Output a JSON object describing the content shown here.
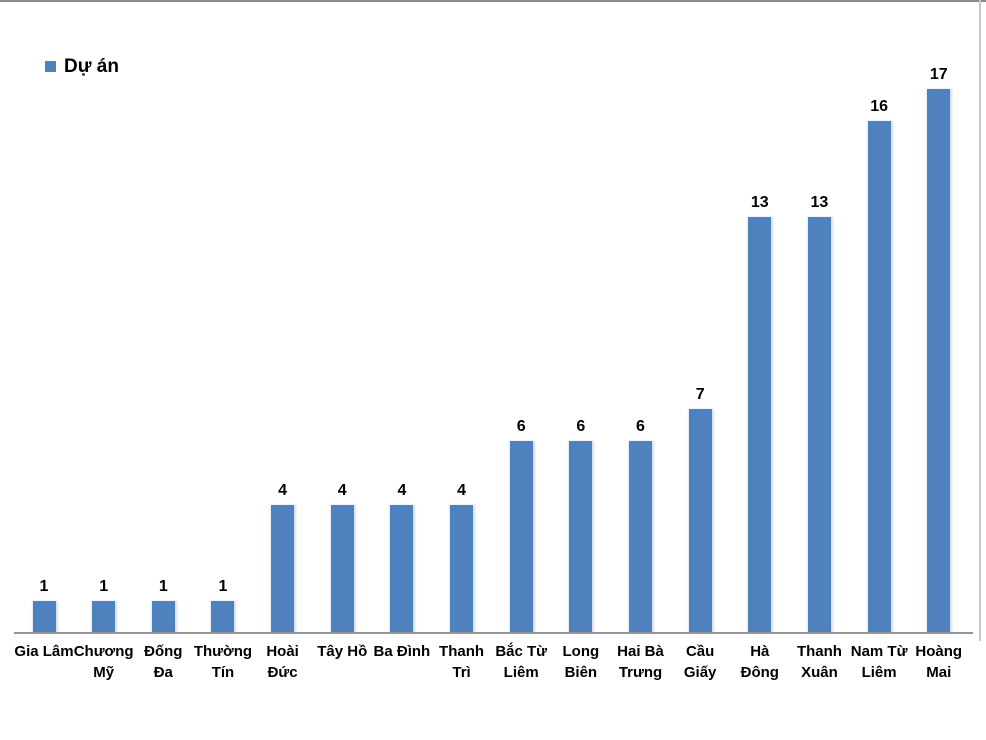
{
  "chart_data": {
    "type": "bar",
    "title": "",
    "legend": {
      "label": "Dự án",
      "position": "top-left"
    },
    "categories": [
      "Gia Lâm",
      "Chương Mỹ",
      "Đống Đa",
      "Thường Tín",
      "Hoài Đức",
      "Tây Hồ",
      "Ba Đình",
      "Thanh Trì",
      "Bắc Từ Liêm",
      "Long Biên",
      "Hai Bà Trưng",
      "Cầu Giấy",
      "Hà Đông",
      "Thanh Xuân",
      "Nam Từ Liêm",
      "Hoàng Mai"
    ],
    "category_lines": [
      [
        "Gia Lâm"
      ],
      [
        "Chương",
        "Mỹ"
      ],
      [
        "Đống",
        "Đa"
      ],
      [
        "Thường",
        "Tín"
      ],
      [
        "Hoài",
        "Đức"
      ],
      [
        "Tây Hồ"
      ],
      [
        "Ba Đình"
      ],
      [
        "Thanh",
        "Trì"
      ],
      [
        "Bắc Từ",
        "Liêm"
      ],
      [
        "Long",
        "Biên"
      ],
      [
        "Hai Bà",
        "Trưng"
      ],
      [
        "Cầu",
        "Giấy"
      ],
      [
        "Hà",
        "Đông"
      ],
      [
        "Thanh",
        "Xuân"
      ],
      [
        "Nam Từ",
        "Liêm"
      ],
      [
        "Hoàng",
        "Mai"
      ]
    ],
    "series": [
      {
        "name": "Dự án",
        "values": [
          1,
          1,
          1,
          1,
          4,
          4,
          4,
          4,
          6,
          6,
          6,
          7,
          13,
          13,
          16,
          17
        ]
      }
    ],
    "values": [
      1,
      1,
      1,
      1,
      4,
      4,
      4,
      4,
      6,
      6,
      6,
      7,
      13,
      13,
      16,
      17
    ],
    "data_labels": true,
    "grid": false,
    "xlabel": "",
    "ylabel": "",
    "ylim": [
      0,
      17
    ],
    "colors": {
      "bar": "#4F81BD",
      "data_label": "#000000",
      "category_label": "#000000",
      "axis_line": "#959595",
      "top_border": "#8A8A8A",
      "right_border": "#C8C8C8",
      "background": "#FFFFFF"
    }
  }
}
